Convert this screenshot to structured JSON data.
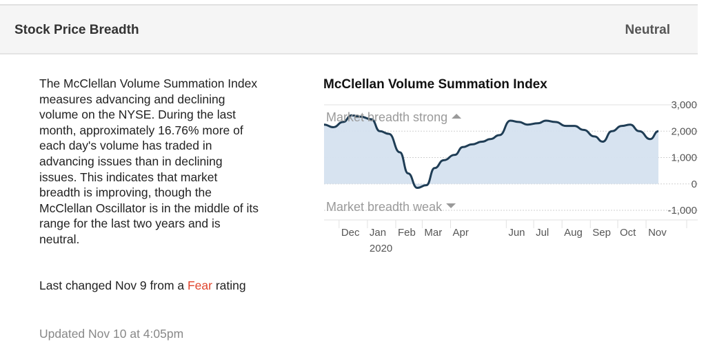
{
  "header": {
    "title": "Stock Price Breadth",
    "rating": "Neutral"
  },
  "description": "The McClellan Volume Summation Index measures advancing and declining volume on the NYSE. During the last month, approximately 16.76% more of each day's volume has traded in advancing issues than in declining issues. This indicates that market breadth is improving, though the McClellan Oscillator is in the middle of its range for the last two years and is neutral.",
  "last_changed": {
    "prefix": "Last changed Nov 9 from a ",
    "rating": "Fear",
    "suffix": " rating"
  },
  "updated": "Updated Nov 10 at 4:05pm",
  "colors": {
    "fear": "#e0442c",
    "line": "#1f3d55",
    "fill": "#d5e1ef"
  },
  "chart_data": {
    "type": "area",
    "title": "McClellan Volume Summation Index",
    "annotations": {
      "upper": "Market breadth strong",
      "lower": "Market breadth weak",
      "upper_icon": "triangle-up-icon",
      "lower_icon": "triangle-down-icon"
    },
    "ylim": [
      -1000,
      3000
    ],
    "yticks": [
      3000,
      2000,
      1000,
      0,
      -1000
    ],
    "ytick_labels": [
      "3,000",
      "2,000",
      "1,000",
      "0",
      "-1,000"
    ],
    "xlim": [
      "2019-11-10",
      "2020-11-10"
    ],
    "xticks": [
      {
        "date": "2019-12-01",
        "label": "Dec"
      },
      {
        "date": "2020-01-01",
        "label": "Jan"
      },
      {
        "date": "2020-02-01",
        "label": "Feb"
      },
      {
        "date": "2020-03-01",
        "label": "Mar"
      },
      {
        "date": "2020-04-01",
        "label": "Apr"
      },
      {
        "date": "2020-06-01",
        "label": "Jun"
      },
      {
        "date": "2020-07-01",
        "label": "Jul"
      },
      {
        "date": "2020-08-01",
        "label": "Aug"
      },
      {
        "date": "2020-09-01",
        "label": "Sep"
      },
      {
        "date": "2020-10-01",
        "label": "Oct"
      },
      {
        "date": "2020-11-01",
        "label": "Nov"
      }
    ],
    "year_label": "2020",
    "series": [
      {
        "dates": [
          "2019-11-10",
          "2019-11-20",
          "2019-12-01",
          "2019-12-10",
          "2019-12-20",
          "2020-01-01",
          "2020-01-10",
          "2020-01-20",
          "2020-02-01",
          "2020-02-10",
          "2020-02-20",
          "2020-03-01",
          "2020-03-10",
          "2020-03-20",
          "2020-04-01",
          "2020-04-10",
          "2020-04-20",
          "2020-05-01",
          "2020-05-10",
          "2020-05-20",
          "2020-06-01",
          "2020-06-10",
          "2020-06-20",
          "2020-07-01",
          "2020-07-10",
          "2020-07-20",
          "2020-08-01",
          "2020-08-10",
          "2020-08-20",
          "2020-09-01",
          "2020-09-10",
          "2020-09-20",
          "2020-10-01",
          "2020-10-10",
          "2020-10-20",
          "2020-11-01",
          "2020-11-10"
        ],
        "values": [
          2250,
          2150,
          2350,
          2600,
          2550,
          2450,
          2000,
          1900,
          1200,
          400,
          -150,
          -50,
          600,
          900,
          1100,
          1400,
          1500,
          1600,
          1700,
          1850,
          2400,
          2350,
          2250,
          2300,
          2400,
          2350,
          2200,
          2200,
          2050,
          1800,
          1600,
          2000,
          2200,
          2250,
          2000,
          1700,
          2000
        ]
      }
    ]
  }
}
